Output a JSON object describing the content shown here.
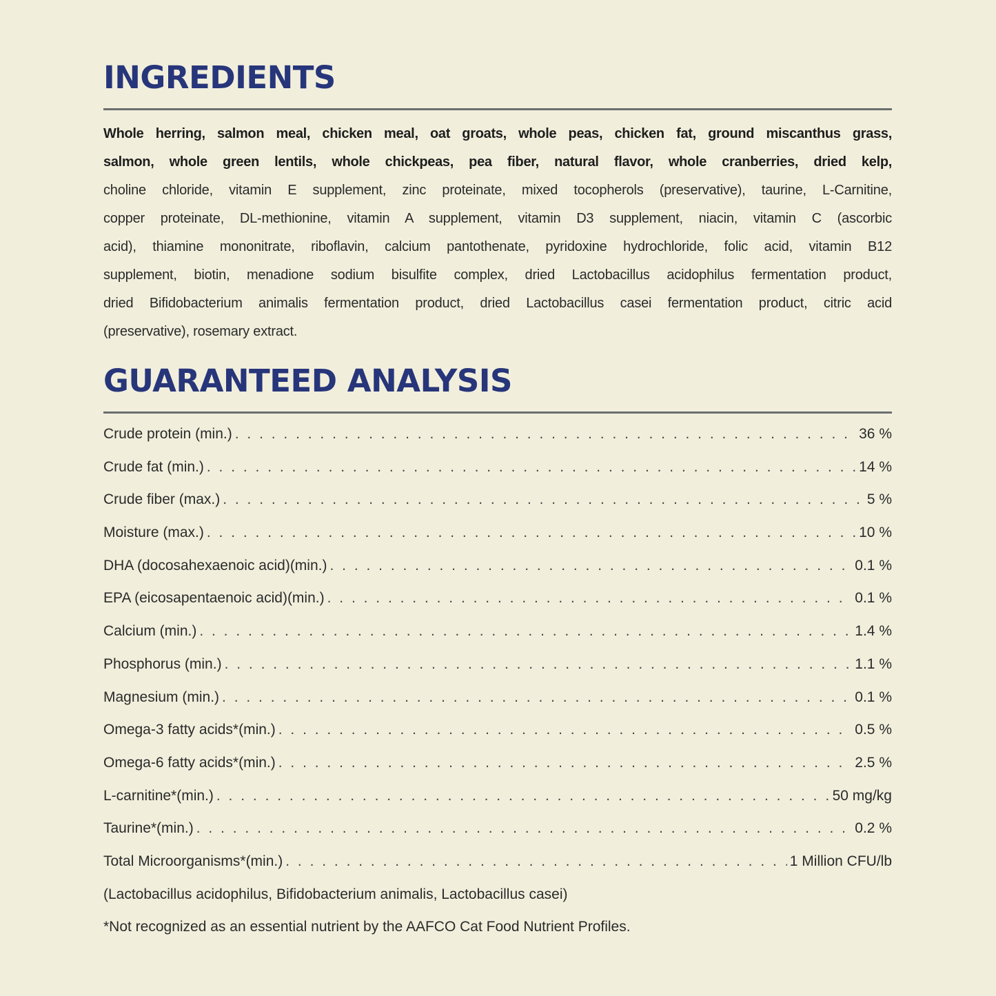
{
  "ingredients": {
    "title": "INGREDIENTS",
    "lines": [
      "Whole herring, salmon meal, chicken meal, oat groats, whole peas, chicken fat, ground miscanthus grass,",
      "salmon, whole green lentils, whole chickpeas, pea fiber, natural flavor, whole cranberries, dried kelp,",
      "choline chloride, vitamin E supplement, zinc proteinate, mixed tocopherols (preservative), taurine, L-Carnitine,",
      "copper proteinate, DL-methionine, vitamin A supplement, vitamin D3 supplement, niacin, vitamin C (ascorbic",
      "acid), thiamine mononitrate, riboflavin, calcium pantothenate, pyridoxine hydrochloride, folic acid, vitamin B12",
      "supplement, biotin, menadione sodium bisulfite complex, dried Lactobacillus acidophilus fermentation product,",
      "dried Bifidobacterium animalis fermentation product, dried Lactobacillus casei fermentation product, citric acid",
      "(preservative), rosemary extract."
    ]
  },
  "analysis": {
    "title": "GUARANTEED ANALYSIS",
    "rows": [
      {
        "label": "Crude protein (min.)",
        "value": "36 %"
      },
      {
        "label": "Crude fat (min.)",
        "value": "14 %"
      },
      {
        "label": "Crude fiber (max.)",
        "value": "5 %"
      },
      {
        "label": "Moisture (max.)",
        "value": "10 %"
      },
      {
        "label": "DHA (docosahexaenoic acid)(min.)",
        "value": "0.1 %"
      },
      {
        "label": "EPA (eicosapentaenoic acid)(min.)",
        "value": "0.1 %"
      },
      {
        "label": "Calcium (min.)",
        "value": "1.4 %"
      },
      {
        "label": "Phosphorus (min.)",
        "value": "1.1 %"
      },
      {
        "label": "Magnesium (min.)",
        "value": "0.1 %"
      },
      {
        "label": "Omega-3 fatty acids*(min.)",
        "value": "0.5 %"
      },
      {
        "label": "Omega-6 fatty acids*(min.)",
        "value": "2.5 %"
      },
      {
        "label": "L-carnitine*(min.)",
        "value": "50 mg/kg"
      },
      {
        "label": "Taurine*(min.)",
        "value": "0.2 %"
      },
      {
        "label": "Total Microorganisms*(min.)",
        "value": "1 Million CFU/lb"
      }
    ],
    "microorganisms_note": "(Lactobacillus acidophilus, Bifidobacterium animalis, Lactobacillus casei)",
    "footnote": "*Not recognized as an essential nutrient by the AAFCO Cat Food Nutrient Profiles."
  },
  "colors": {
    "heading": "#27357a",
    "background": "#f1efdc",
    "rule": "#6b6e6e"
  }
}
